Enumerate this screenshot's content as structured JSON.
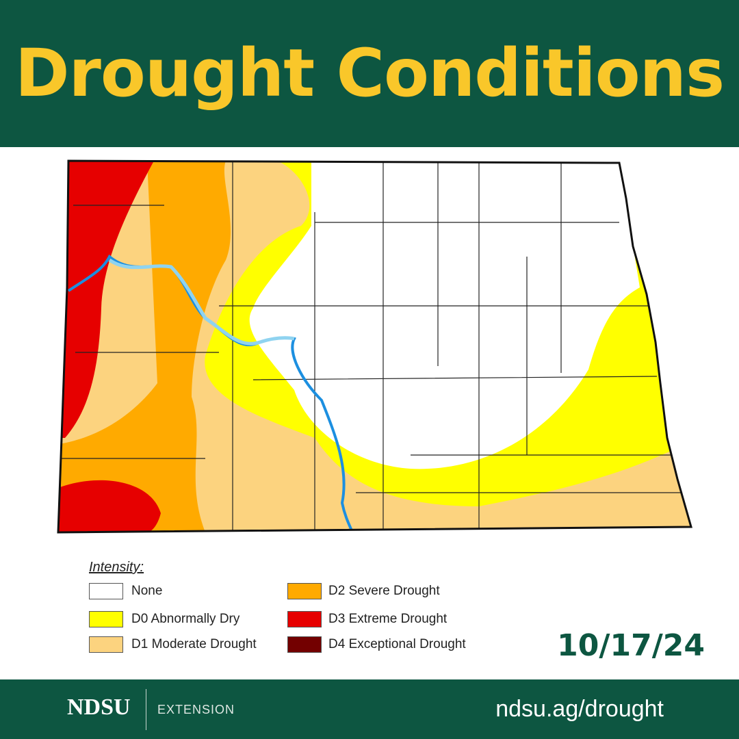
{
  "header": {
    "title": "Drought Conditions"
  },
  "legend": {
    "title": "Intensity:",
    "items": [
      {
        "label": "None",
        "color": "#ffffff"
      },
      {
        "label": "D0 Abnormally Dry",
        "color": "#ffff00"
      },
      {
        "label": "D1 Moderate Drought",
        "color": "#fcd37f"
      },
      {
        "label": "D2 Severe Drought",
        "color": "#ffaa00"
      },
      {
        "label": "D3 Extreme Drought",
        "color": "#e60000"
      },
      {
        "label": "D4 Exceptional Drought",
        "color": "#730000"
      }
    ]
  },
  "date": "10/17/24",
  "footer": {
    "logo": "NDSU",
    "unit": "EXTENSION",
    "url": "ndsu.ag/drought"
  }
}
